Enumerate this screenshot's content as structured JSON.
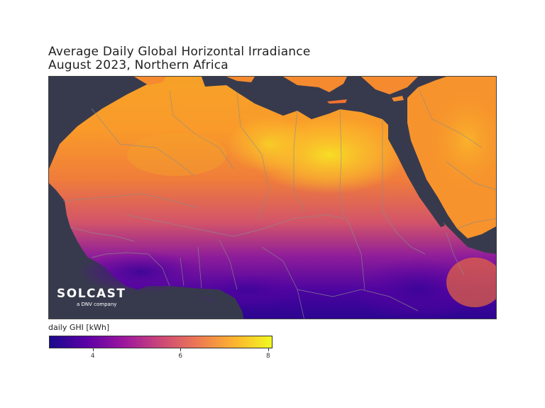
{
  "title": {
    "line1": "Average Daily Global Horizontal Irradiance",
    "line2": "August 2023, Northern Africa"
  },
  "map": {
    "ocean_color": "#373a4d",
    "border_color": "#8c8c8c",
    "logo": {
      "wordmark": "SOLCAST",
      "subtitle": "a DNV company"
    }
  },
  "colorbar": {
    "label": "daily GHI [kWh]",
    "min": 3,
    "max": 8.1,
    "ticks": [
      {
        "value": 4,
        "label": "4"
      },
      {
        "value": 6,
        "label": "6"
      },
      {
        "value": 8,
        "label": "8"
      }
    ],
    "colors": [
      "#1a0a8c",
      "#5c01a6",
      "#9c179e",
      "#cc4778",
      "#ed7953",
      "#fdb42f",
      "#f0f921"
    ]
  }
}
